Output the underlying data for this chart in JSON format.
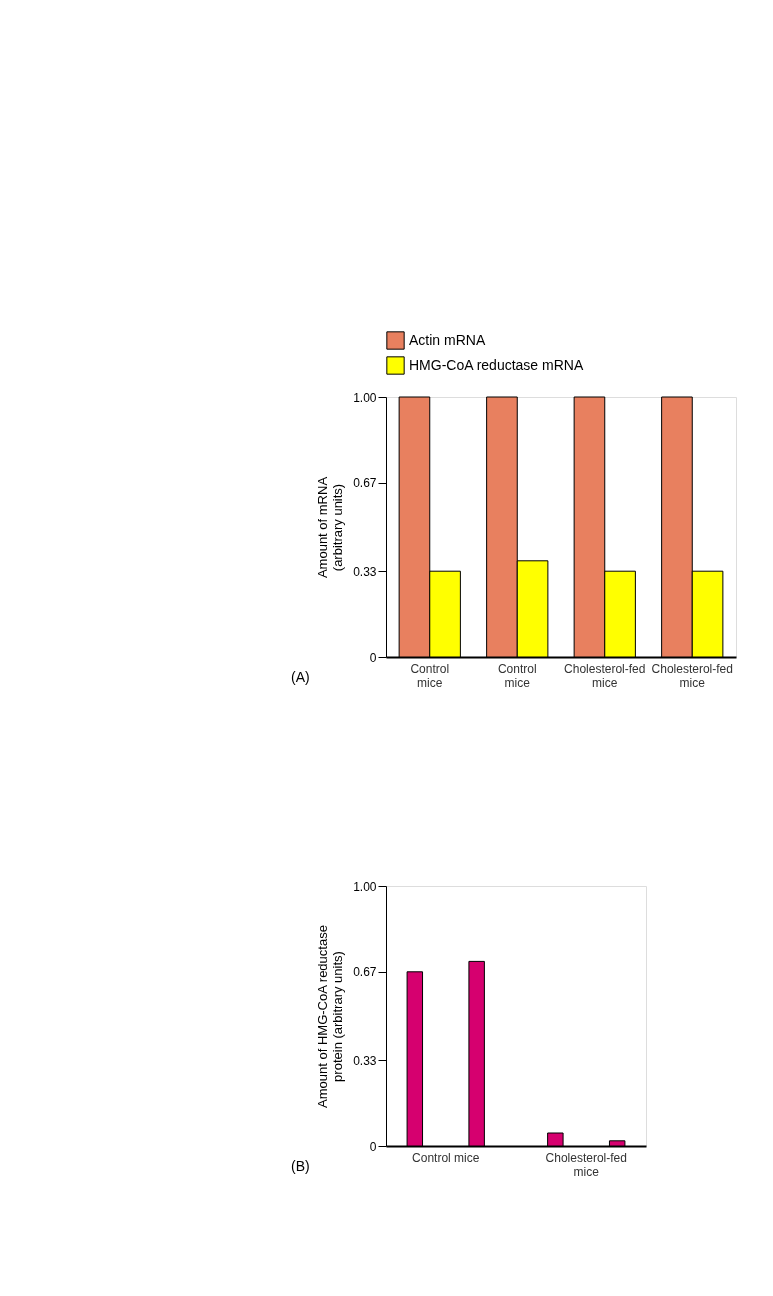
{
  "chart_data": [
    {
      "type": "bar",
      "categories": [
        "Control mice",
        "Control mice",
        "Cholesterol-fed mice",
        "Cholesterol-fed mice"
      ],
      "series": [
        {
          "name": "Actin mRNA",
          "color": "#e8805f",
          "values": [
            1,
            1,
            1,
            1
          ]
        },
        {
          "name": "HMG-CoA reductase mRNA",
          "color": "#ffff00",
          "values": [
            0.33,
            0.37,
            0.33,
            0.33
          ]
        }
      ],
      "ylabel": "Amount of mRNA (arbitrary units)",
      "ylim": [
        0,
        1
      ],
      "yticks": [
        0,
        0.33,
        0.67,
        {
          "value": 1,
          "label": "1.00"
        }
      ],
      "legend": "top",
      "grid": false,
      "annotations": [
        "(A)"
      ]
    },
    {
      "type": "bar",
      "categories": [
        "Control mice",
        "Cholesterol-fed mice"
      ],
      "series": [
        {
          "color": "#d6006f",
          "values": [
            0.67,
            0.05
          ]
        },
        {
          "color": "#d6006f",
          "values": [
            0.71,
            0.02
          ]
        }
      ],
      "ylabel": "Amount of HMG-CoA reductase protein (arbitrary units)",
      "ylim": [
        0,
        1
      ],
      "yticks": [
        0,
        0.33,
        0.67,
        {
          "value": 1,
          "label": "1.00"
        }
      ],
      "legend": false,
      "grid": false,
      "annotations": [
        "(B)"
      ]
    }
  ]
}
